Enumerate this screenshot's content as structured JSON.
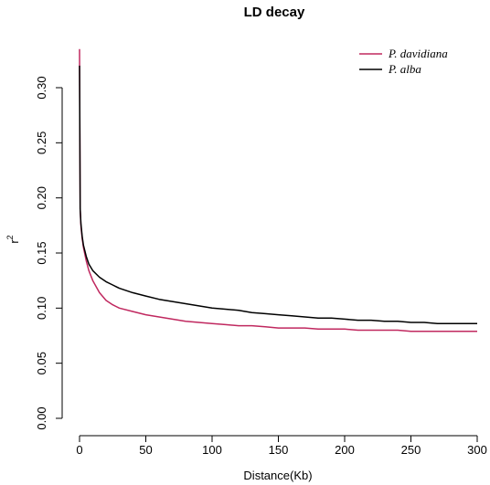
{
  "chart_data": {
    "type": "line",
    "title": "LD decay",
    "xlabel": "Distance(Kb)",
    "ylabel": "r",
    "ylabel_superscript": "2",
    "xlim": [
      0,
      300
    ],
    "ylim": [
      0,
      0.33
    ],
    "x_ticks": [
      "0",
      "50",
      "100",
      "150",
      "200",
      "250",
      "300"
    ],
    "y_ticks": [
      "0.00",
      "0.05",
      "0.10",
      "0.15",
      "0.20",
      "0.25",
      "0.30"
    ],
    "grid": false,
    "legend_position": "top-right",
    "x": [
      0,
      0.5,
      1,
      2,
      3,
      5,
      7,
      10,
      15,
      20,
      25,
      30,
      40,
      50,
      60,
      70,
      80,
      90,
      100,
      110,
      120,
      130,
      140,
      150,
      160,
      170,
      180,
      190,
      200,
      210,
      220,
      230,
      240,
      250,
      260,
      270,
      280,
      290,
      300
    ],
    "series": [
      {
        "name": "P. davidiana",
        "color": "#c0285f",
        "values": [
          0.335,
          0.19,
          0.175,
          0.163,
          0.155,
          0.143,
          0.134,
          0.125,
          0.114,
          0.107,
          0.103,
          0.1,
          0.097,
          0.094,
          0.092,
          0.09,
          0.088,
          0.087,
          0.086,
          0.085,
          0.084,
          0.084,
          0.083,
          0.082,
          0.082,
          0.082,
          0.081,
          0.081,
          0.081,
          0.08,
          0.08,
          0.08,
          0.08,
          0.079,
          0.079,
          0.079,
          0.079,
          0.079,
          0.079
        ]
      },
      {
        "name": "P. alba",
        "color": "#000000",
        "values": [
          0.32,
          0.19,
          0.177,
          0.165,
          0.157,
          0.147,
          0.14,
          0.134,
          0.128,
          0.124,
          0.121,
          0.118,
          0.114,
          0.111,
          0.108,
          0.106,
          0.104,
          0.102,
          0.1,
          0.099,
          0.098,
          0.096,
          0.095,
          0.094,
          0.093,
          0.092,
          0.091,
          0.091,
          0.09,
          0.089,
          0.089,
          0.088,
          0.088,
          0.087,
          0.087,
          0.086,
          0.086,
          0.086,
          0.086
        ]
      }
    ]
  }
}
